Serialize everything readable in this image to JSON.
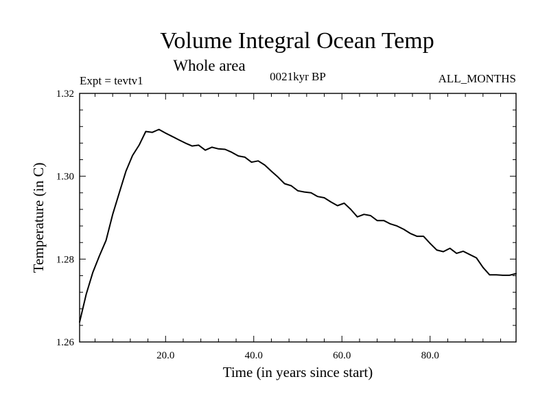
{
  "chart_data": {
    "type": "line",
    "title": "Volume Integral Ocean Temp",
    "subtitle": "Whole area",
    "left_annotation": "Expt = tevtv1",
    "center_annotation": "0021kyr BP",
    "right_annotation": "ALL_MONTHS",
    "xlabel": "Time (in years since start)",
    "ylabel": "Temperature (in C)",
    "xlim": [
      0.5,
      99.5
    ],
    "ylim": [
      1.26,
      1.32
    ],
    "x_ticks": [
      {
        "value": 20,
        "label": "20.0"
      },
      {
        "value": 40,
        "label": "40.0"
      },
      {
        "value": 60,
        "label": "60.0"
      },
      {
        "value": 80,
        "label": "80.0"
      }
    ],
    "y_ticks": [
      {
        "value": 1.26,
        "label": "1.26"
      },
      {
        "value": 1.28,
        "label": "1.28"
      },
      {
        "value": 1.3,
        "label": "1.30"
      },
      {
        "value": 1.32,
        "label": "1.32"
      }
    ],
    "series": [
      {
        "name": "Volume Integral Ocean Temp",
        "x": [
          0.5,
          2,
          3.5,
          5,
          6.5,
          8,
          9.5,
          11,
          12.5,
          14,
          15.5,
          17,
          18.5,
          20,
          21.5,
          23,
          24.5,
          26,
          27.5,
          29,
          30.5,
          32,
          33.5,
          35,
          36.5,
          38,
          39.5,
          41,
          42.5,
          44,
          45.5,
          47,
          48.5,
          50,
          51.5,
          53,
          54.5,
          56,
          57.5,
          59,
          60.5,
          62,
          63.5,
          65,
          66.5,
          68,
          69.5,
          71,
          72.5,
          74,
          75.5,
          77,
          78.5,
          80,
          81.5,
          83,
          84.5,
          86,
          87.5,
          89,
          90.5,
          92,
          93.5,
          95,
          96.5,
          98,
          99.5
        ],
        "values": [
          1.2648,
          1.2715,
          1.2768,
          1.2808,
          1.2845,
          1.2908,
          1.296,
          1.3012,
          1.305,
          1.3075,
          1.3108,
          1.3106,
          1.3113,
          1.3104,
          1.3096,
          1.3088,
          1.308,
          1.3073,
          1.3075,
          1.3063,
          1.307,
          1.3066,
          1.3065,
          1.3058,
          1.3049,
          1.3046,
          1.3034,
          1.3037,
          1.3027,
          1.3012,
          1.2998,
          1.2982,
          1.2977,
          1.2965,
          1.2962,
          1.296,
          1.2951,
          1.2948,
          1.2938,
          1.2929,
          1.2935,
          1.292,
          1.2902,
          1.2908,
          1.2905,
          1.2893,
          1.2893,
          1.2885,
          1.288,
          1.2872,
          1.2862,
          1.2855,
          1.2855,
          1.2838,
          1.2822,
          1.2818,
          1.2826,
          1.2814,
          1.2819,
          1.2811,
          1.2803,
          1.278,
          1.2762,
          1.2762,
          1.2761,
          1.2761,
          1.2765
        ]
      }
    ]
  }
}
